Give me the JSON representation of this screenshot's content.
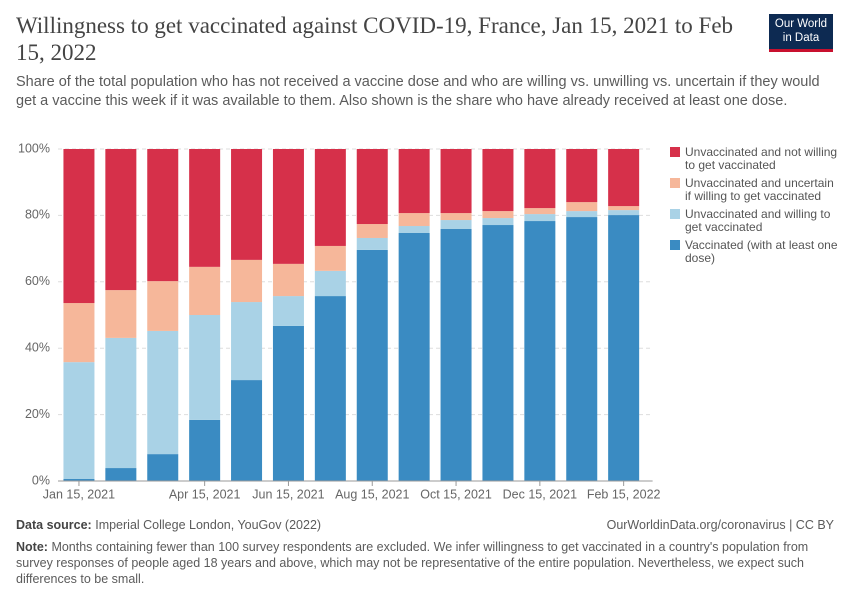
{
  "chart_data": {
    "type": "stacked_bar",
    "title": "Willingness to get vaccinated against COVID-19, France, Jan 15, 2021 to Feb 15, 2022",
    "subtitle": "Share of the total population who has not received a vaccine dose and who are willing vs. unwilling vs. uncertain if they would get a vaccine this week if it was available to them. Also shown is the share who have already received at least one dose.",
    "categories": [
      "Jan 15, 2021",
      null,
      null,
      "Apr 15, 2021",
      null,
      "Jun 15, 2021",
      null,
      "Aug 15, 2021",
      null,
      "Oct 15, 2021",
      null,
      "Dec 15, 2021",
      null,
      "Feb 15, 2022"
    ],
    "series": [
      {
        "name": "Vaccinated (with at least one dose)",
        "color": "#3a8bc2",
        "values": [
          0.6,
          3.9,
          8.1,
          18.4,
          30.4,
          46.7,
          55.7,
          69.6,
          74.7,
          75.9,
          77.1,
          78.3,
          79.5,
          80.1
        ]
      },
      {
        "name": "Unvaccinated and willing to get vaccinated",
        "color": "#a9d2e6",
        "values": [
          35.2,
          39.2,
          37.1,
          31.6,
          23.5,
          9.0,
          7.6,
          3.6,
          2.1,
          2.7,
          2.1,
          2.1,
          1.8,
          1.5
        ]
      },
      {
        "name": "Unvaccinated and uncertain if willing to get vaccinated",
        "color": "#f6b79a",
        "values": [
          17.8,
          14.4,
          15.0,
          14.5,
          12.7,
          9.7,
          7.5,
          4.2,
          3.9,
          2.1,
          2.1,
          1.8,
          2.7,
          1.2
        ]
      },
      {
        "name": "Unvaccinated and not willing to get vaccinated",
        "color": "#d6304a",
        "values": [
          46.4,
          42.5,
          39.8,
          35.5,
          33.4,
          34.6,
          29.2,
          22.6,
          19.3,
          19.3,
          18.7,
          17.8,
          16.0,
          17.2
        ]
      }
    ],
    "ylim": [
      0,
      100
    ],
    "yticks": [
      {
        "value": 0,
        "label": "0%"
      },
      {
        "value": 20,
        "label": "20%"
      },
      {
        "value": 40,
        "label": "40%"
      },
      {
        "value": 60,
        "label": "60%"
      },
      {
        "value": 80,
        "label": "80%"
      },
      {
        "value": 100,
        "label": "100%"
      }
    ],
    "grid": true
  },
  "logo": {
    "line1": "Our World",
    "line2": "in Data"
  },
  "footer": {
    "source_label": "Data source:",
    "source": "Imperial College London, YouGov (2022)",
    "url": "OurWorldinData.org/coronavirus | CC BY",
    "note_label": "Note:",
    "note": "Months containing fewer than 100 survey respondents are excluded. We infer willingness to get vaccinated in a country's population from survey responses of people aged 18 years and above, which may not be representative of the entire population. Nevertheless, we expect such differences to be small."
  }
}
